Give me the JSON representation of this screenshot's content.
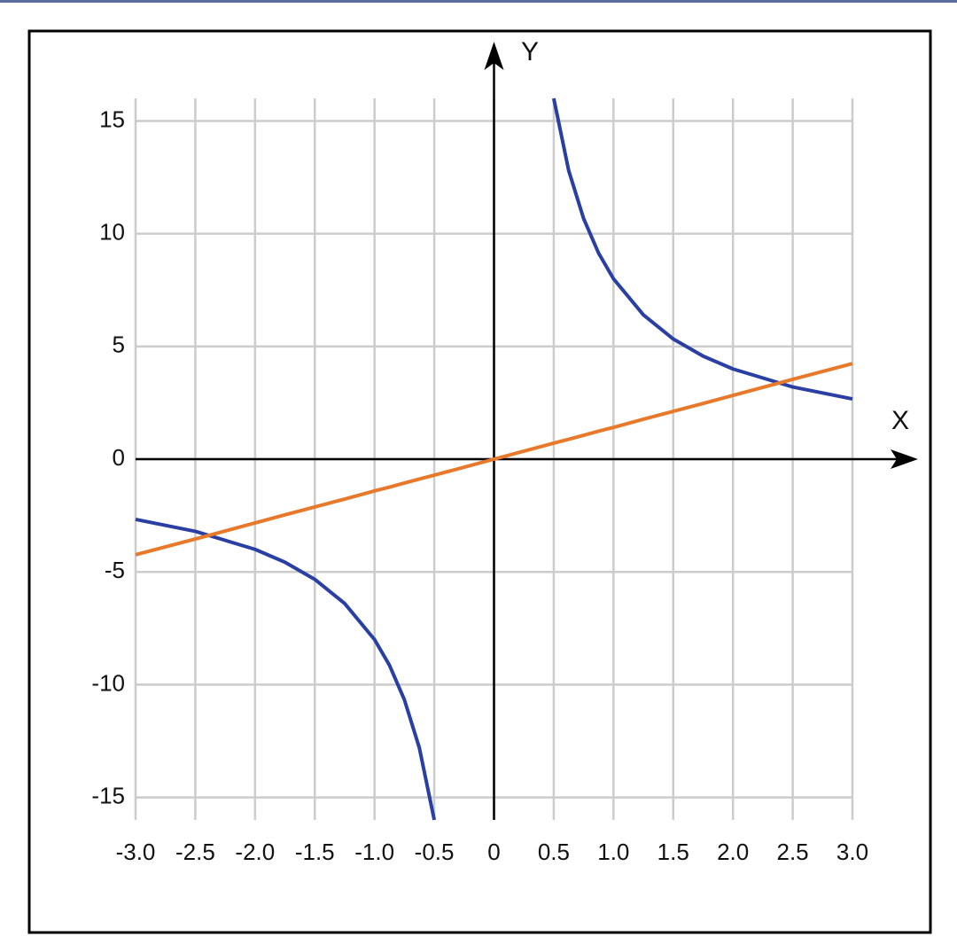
{
  "chart_data": {
    "type": "line",
    "x_label": "X",
    "y_label": "Y",
    "x": [
      -3,
      -2.5,
      -2,
      -1.75,
      -1.5,
      -1.25,
      -1,
      -0.875,
      -0.75,
      -0.625,
      -0.5,
      0,
      0.5,
      0.625,
      0.75,
      0.875,
      1,
      1.25,
      1.5,
      1.75,
      2,
      2.5,
      3
    ],
    "series": [
      {
        "color": "#2a3fa3",
        "values": [
          -2.67,
          -3.2,
          -4,
          -4.57,
          -5.33,
          -6.4,
          -8,
          -9.14,
          -10.67,
          -12.8,
          -16,
          null,
          16,
          12.8,
          10.67,
          9.14,
          8,
          6.4,
          5.33,
          4.57,
          4,
          3.2,
          2.67
        ]
      },
      {
        "color": "#e8792b",
        "values": [
          -4.24,
          -3.54,
          -2.83,
          -2.47,
          -2.12,
          -1.77,
          -1.41,
          -1.24,
          -1.06,
          -0.88,
          -0.71,
          0,
          0.71,
          0.88,
          1.06,
          1.24,
          1.41,
          1.77,
          2.12,
          2.47,
          2.83,
          3.54,
          4.24
        ]
      }
    ],
    "xlim": [
      -3,
      3
    ],
    "ylim": [
      -16,
      16
    ],
    "xticks": [
      {
        "value": -3,
        "label": "-3.0"
      },
      -2.5,
      {
        "value": -2,
        "label": "-2.0"
      },
      -1.5,
      {
        "value": -1,
        "label": "-1.0"
      },
      -0.5,
      0,
      0.5,
      {
        "value": 1,
        "label": "1.0"
      },
      1.5,
      {
        "value": 2,
        "label": "2.0"
      },
      2.5,
      {
        "value": 3,
        "label": "3.0"
      }
    ],
    "yticks": [
      -15,
      -10,
      -5,
      0,
      5,
      10,
      15
    ],
    "grid": true
  }
}
